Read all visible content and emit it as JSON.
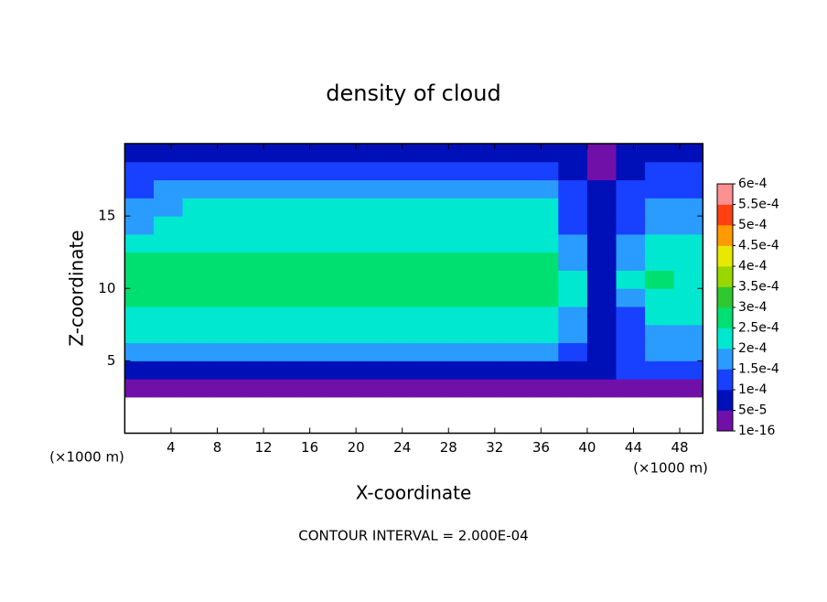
{
  "chart_data": {
    "type": "contour",
    "title": "density of cloud",
    "x_label": "X-coordinate",
    "y_label": "Z-coordinate",
    "x_unit": "(×1000 m)",
    "y_unit": "(×1000 m)",
    "footnote": "CONTOUR INTERVAL = 2.000E-04",
    "xlim": [
      0,
      50
    ],
    "ylim": [
      0,
      20
    ],
    "xticks": [
      4,
      8,
      12,
      16,
      20,
      24,
      28,
      32,
      36,
      40,
      44,
      48
    ],
    "yticks": [
      5,
      10,
      15
    ],
    "x": [
      1.25,
      3.75,
      6.25,
      8.75,
      11.25,
      13.75,
      16.25,
      18.75,
      21.25,
      23.75,
      26.25,
      28.75,
      31.25,
      33.75,
      36.25,
      38.75,
      41.25,
      43.75,
      46.25,
      48.75
    ],
    "y": [
      0.625,
      1.875,
      3.125,
      4.375,
      5.625,
      6.875,
      8.125,
      9.375,
      10.625,
      11.875,
      13.125,
      14.375,
      15.625,
      16.875,
      18.125,
      19.375
    ],
    "z": [
      [
        null,
        null,
        null,
        null,
        null,
        null,
        null,
        null,
        null,
        null,
        null,
        null,
        null,
        null,
        null,
        null,
        null,
        null,
        null,
        null
      ],
      [
        null,
        null,
        null,
        null,
        null,
        null,
        null,
        null,
        null,
        null,
        null,
        null,
        null,
        null,
        null,
        null,
        null,
        null,
        null,
        null
      ],
      [
        2e-05,
        2e-05,
        2e-05,
        2e-05,
        2e-05,
        2e-05,
        2e-05,
        2e-05,
        2e-05,
        2e-05,
        2e-05,
        2e-05,
        2e-05,
        2e-05,
        2e-05,
        4e-05,
        4e-05,
        2e-05,
        2e-05,
        2e-05
      ],
      [
        9e-05,
        9e-05,
        9e-05,
        9e-05,
        9e-05,
        9e-05,
        9e-05,
        9e-05,
        9e-05,
        9e-05,
        9e-05,
        9e-05,
        9e-05,
        9e-05,
        9e-05,
        8e-05,
        6e-05,
        0.00011,
        0.00011,
        0.00011
      ],
      [
        0.00015,
        0.00015,
        0.00015,
        0.00015,
        0.00015,
        0.00015,
        0.00015,
        0.00015,
        0.00015,
        0.00015,
        0.00015,
        0.00015,
        0.00015,
        0.00015,
        0.00015,
        0.00012,
        7e-05,
        0.00013,
        0.00016,
        0.00017
      ],
      [
        0.00021,
        0.00021,
        0.00021,
        0.00021,
        0.00021,
        0.00021,
        0.00021,
        0.00021,
        0.00021,
        0.00021,
        0.00021,
        0.00021,
        0.00021,
        0.00021,
        0.00021,
        0.00016,
        6e-05,
        0.00012,
        0.00019,
        0.00018
      ],
      [
        0.00023,
        0.00023,
        0.00023,
        0.00023,
        0.00023,
        0.00023,
        0.00023,
        0.00023,
        0.00023,
        0.00023,
        0.00023,
        0.00023,
        0.00023,
        0.00023,
        0.00023,
        0.00019,
        5e-05,
        0.00014,
        0.00022,
        0.00021
      ],
      [
        0.00025,
        0.00025,
        0.00025,
        0.00025,
        0.00025,
        0.00025,
        0.00025,
        0.00025,
        0.00025,
        0.00025,
        0.00025,
        0.00025,
        0.00025,
        0.00025,
        0.00025,
        0.0002,
        5e-05,
        0.00018,
        0.00024,
        0.00023
      ],
      [
        0.00026,
        0.00026,
        0.00026,
        0.00026,
        0.00026,
        0.00026,
        0.00026,
        0.00026,
        0.00026,
        0.00026,
        0.00026,
        0.00026,
        0.00026,
        0.00026,
        0.00026,
        0.0002,
        6e-05,
        0.0002,
        0.00025,
        0.00024
      ],
      [
        0.00025,
        0.00025,
        0.00025,
        0.00025,
        0.00025,
        0.00025,
        0.00025,
        0.00025,
        0.00025,
        0.00025,
        0.00025,
        0.00025,
        0.00025,
        0.00025,
        0.00025,
        0.00019,
        7e-05,
        0.00019,
        0.00024,
        0.00023
      ],
      [
        0.00024,
        0.00024,
        0.00024,
        0.00024,
        0.00024,
        0.00024,
        0.00024,
        0.00024,
        0.00024,
        0.00024,
        0.00024,
        0.00024,
        0.00024,
        0.00024,
        0.00024,
        0.00017,
        7e-05,
        0.00015,
        0.00022,
        0.00021
      ],
      [
        0.00019,
        0.00022,
        0.00022,
        0.00022,
        0.00022,
        0.00022,
        0.00022,
        0.00022,
        0.00022,
        0.00022,
        0.00022,
        0.00022,
        0.00022,
        0.00022,
        0.00022,
        0.00014,
        6e-05,
        0.00012,
        0.00019,
        0.00018
      ],
      [
        0.00016,
        0.00018,
        0.00021,
        0.00021,
        0.00021,
        0.00021,
        0.00021,
        0.00021,
        0.00021,
        0.00021,
        0.00021,
        0.00021,
        0.00021,
        0.00021,
        0.00021,
        0.00012,
        5e-05,
        0.00011,
        0.00015,
        0.00015
      ],
      [
        0.00013,
        0.00017,
        0.00017,
        0.00017,
        0.00017,
        0.00017,
        0.00017,
        0.00017,
        0.00017,
        0.00017,
        0.00017,
        0.00017,
        0.00017,
        0.00017,
        0.00017,
        0.0001,
        5e-05,
        0.0001,
        0.00012,
        0.00012
      ],
      [
        0.00012,
        0.00012,
        0.00012,
        0.00012,
        0.00012,
        0.00012,
        0.00012,
        0.00012,
        0.00012,
        0.00012,
        0.00012,
        0.00012,
        0.00012,
        0.00012,
        0.00012,
        8e-05,
        4e-05,
        8e-05,
        0.0001,
        0.0001
      ],
      [
        8e-05,
        8e-05,
        8e-05,
        8e-05,
        8e-05,
        8e-05,
        8e-05,
        8e-05,
        8e-05,
        8e-05,
        8e-05,
        8e-05,
        8e-05,
        8e-05,
        8e-05,
        6e-05,
        3e-05,
        6e-05,
        7e-05,
        7e-05
      ]
    ],
    "levels": [
      {
        "value": 1e-16,
        "label": "1e-16"
      },
      {
        "value": 5e-05,
        "label": "5e-5"
      },
      {
        "value": 0.0001,
        "label": "1e-4"
      },
      {
        "value": 0.00015,
        "label": "1.5e-4"
      },
      {
        "value": 0.0002,
        "label": "2e-4"
      },
      {
        "value": 0.00025,
        "label": "2.5e-4"
      },
      {
        "value": 0.0003,
        "label": "3e-4"
      },
      {
        "value": 0.00035,
        "label": "3.5e-4"
      },
      {
        "value": 0.0004,
        "label": "4e-4"
      },
      {
        "value": 0.00045,
        "label": "4.5e-4"
      },
      {
        "value": 0.0005,
        "label": "5e-4"
      },
      {
        "value": 0.00055,
        "label": "5.5e-4"
      },
      {
        "value": 0.0006,
        "label": "6e-4"
      }
    ],
    "colors": [
      "#7010a8",
      "#0010b8",
      "#1840ff",
      "#2a9cff",
      "#00e8d0",
      "#00e070",
      "#30c830",
      "#98d800",
      "#e8e800",
      "#ff9a00",
      "#ff4010",
      "#ff9090"
    ]
  }
}
